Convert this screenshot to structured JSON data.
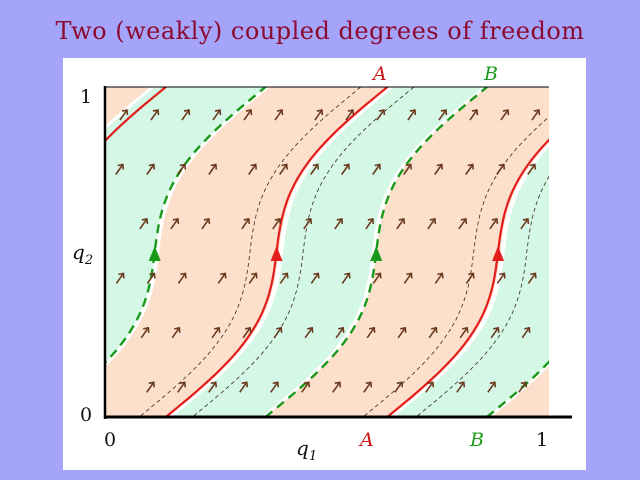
{
  "title": "Two  (weakly)  coupled  degrees  of  freedom",
  "axes": {
    "x_label": "q",
    "x_label_sub": "1",
    "y_label": "q",
    "y_label_sub": "2",
    "x_tick_0": "0",
    "x_tick_1": "1",
    "y_tick_0": "0",
    "y_tick_1": "1"
  },
  "markers": {
    "A_bottom": "A",
    "B_bottom": "B",
    "A_top": "A",
    "B_top": "B"
  },
  "colors": {
    "background": "#a4a4fb",
    "title": "#8b0a2e",
    "band_orange": "#fce0cc",
    "band_green": "#d4f7e6",
    "orbit_red": "#e31c1c",
    "orbit_green": "#1a9a1a",
    "arrow_brown": "#6b3a1e",
    "separatrix": "#3a2a1a"
  }
}
